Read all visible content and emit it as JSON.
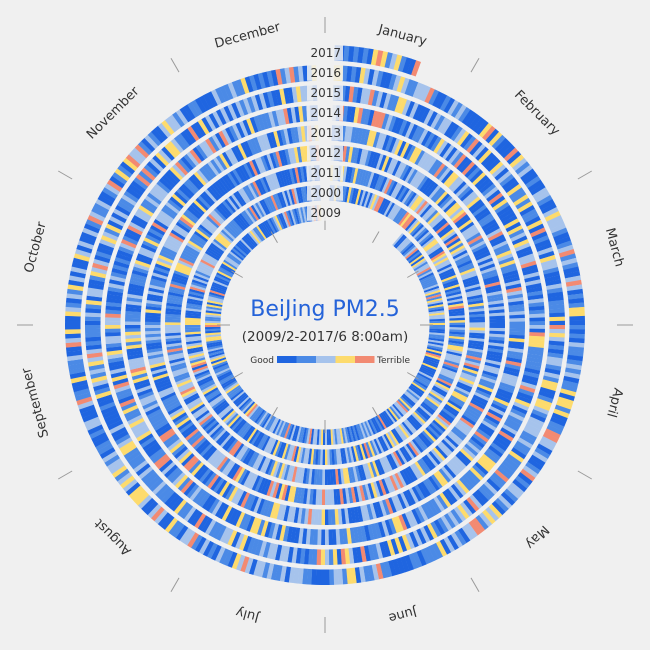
{
  "chart_data": {
    "type": "radial-heatmap",
    "title": "BeiJing PM2.5",
    "subtitle": "(2009/2-2017/6 8:00am)",
    "legend": {
      "low_label": "Good",
      "high_label": "Terrible",
      "colors": [
        "#1f65e0",
        "#4b8ae6",
        "#a6c3ec",
        "#fddb6d",
        "#f28a72"
      ]
    },
    "months": [
      "January",
      "February",
      "March",
      "April",
      "May",
      "June",
      "July",
      "August",
      "September",
      "October",
      "November",
      "December"
    ],
    "rings_outer_to_inner": [
      "2017",
      "2016",
      "2015",
      "2014",
      "2013",
      "2012",
      "2011",
      "2000",
      "2009"
    ]
  }
}
